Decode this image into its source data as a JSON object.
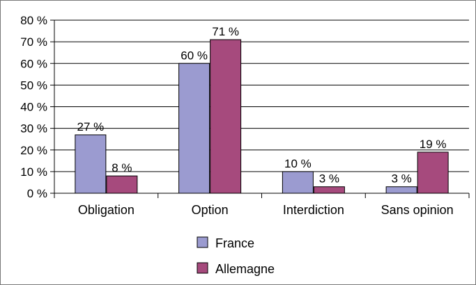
{
  "chart_data": {
    "type": "bar",
    "categories": [
      "Obligation",
      "Option",
      "Interdiction",
      "Sans opinion"
    ],
    "series": [
      {
        "name": "France",
        "values": [
          27,
          60,
          10,
          3
        ],
        "labels": [
          "27 %",
          "60 %",
          "10 %",
          "3 %"
        ],
        "color": "#9b9bd0"
      },
      {
        "name": "Allemagne",
        "values": [
          8,
          71,
          3,
          19
        ],
        "labels": [
          "8 %",
          "71 %",
          "3 %",
          "19 %"
        ],
        "color": "#a64a7d"
      }
    ],
    "ylim": [
      0,
      80
    ],
    "ytick_values": [
      0,
      10,
      20,
      30,
      40,
      50,
      60,
      70,
      80
    ],
    "ytick_labels": [
      "0 %",
      "10 %",
      "20 %",
      "30 %",
      "40 %",
      "50 %",
      "60 %",
      "70 %",
      "80 %"
    ],
    "grid": true,
    "legend_position": "bottom-center"
  }
}
